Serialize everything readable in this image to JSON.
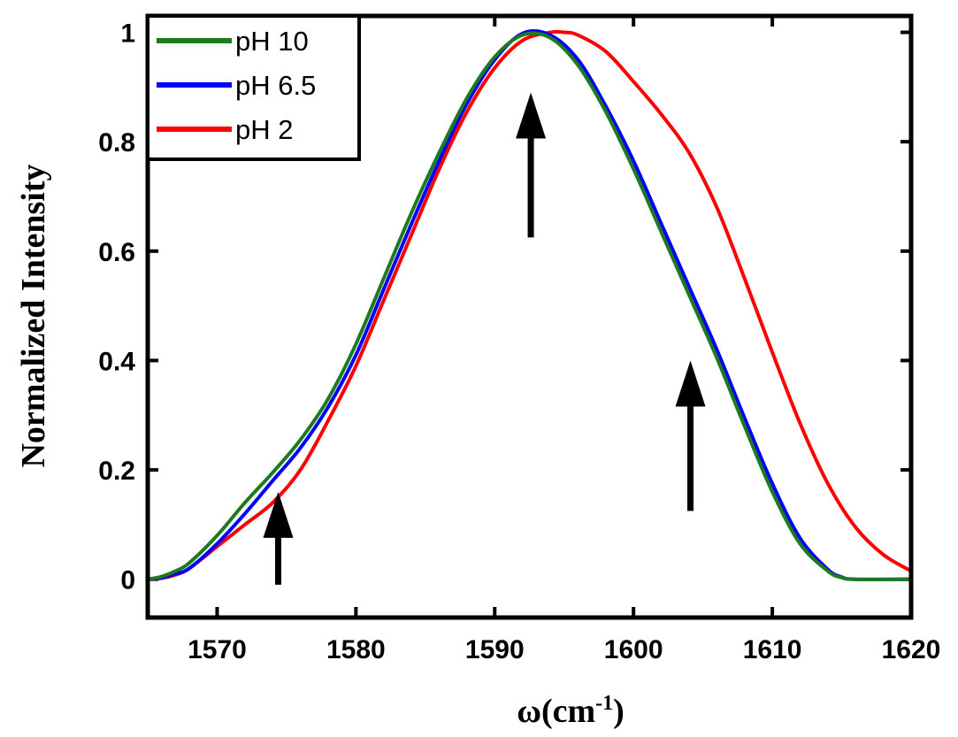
{
  "chart_data": {
    "type": "line",
    "xlabel": "ω(cm",
    "xlabel_superscript": "-1",
    "xlabel_suffix": ")",
    "ylabel": "Normalized Intensity",
    "xlim": [
      1565,
      1620
    ],
    "ylim": [
      -0.07,
      1.03
    ],
    "xticks": [
      1570,
      1580,
      1590,
      1600,
      1610,
      1620
    ],
    "yticks": [
      0,
      0.2,
      0.4,
      0.6,
      0.8,
      1
    ],
    "xtick_labels": [
      "1570",
      "1580",
      "1590",
      "1600",
      "1610",
      "1620"
    ],
    "ytick_labels": [
      "0",
      "0.2",
      "0.4",
      "0.6",
      "0.8",
      "1"
    ],
    "grid": false,
    "legend_position": "top-left",
    "series": [
      {
        "name": "pH 10",
        "color": "#1e7a1e",
        "x": [
          1565,
          1566,
          1567,
          1568,
          1570,
          1572,
          1574,
          1576,
          1578,
          1580,
          1582,
          1584,
          1586,
          1588,
          1590,
          1592,
          1594,
          1596,
          1598,
          1600,
          1602,
          1604,
          1606,
          1608,
          1610,
          1612,
          1614,
          1615,
          1616,
          1620
        ],
        "y": [
          0.0,
          0.005,
          0.015,
          0.03,
          0.08,
          0.14,
          0.195,
          0.255,
          0.33,
          0.43,
          0.55,
          0.67,
          0.78,
          0.88,
          0.955,
          0.995,
          0.99,
          0.94,
          0.855,
          0.75,
          0.635,
          0.52,
          0.405,
          0.28,
          0.16,
          0.065,
          0.015,
          0.003,
          0.0,
          0.0
        ]
      },
      {
        "name": "pH 6.5",
        "color": "#0000ff",
        "x": [
          1565,
          1566,
          1567,
          1568,
          1570,
          1572,
          1574,
          1576,
          1578,
          1580,
          1582,
          1584,
          1586,
          1588,
          1590,
          1592,
          1594,
          1596,
          1598,
          1600,
          1602,
          1604,
          1606,
          1608,
          1610,
          1612,
          1614,
          1615,
          1616,
          1620
        ],
        "y": [
          0.0,
          0.003,
          0.01,
          0.02,
          0.065,
          0.12,
          0.18,
          0.24,
          0.315,
          0.41,
          0.53,
          0.65,
          0.765,
          0.87,
          0.95,
          0.998,
          0.995,
          0.95,
          0.865,
          0.765,
          0.65,
          0.535,
          0.42,
          0.295,
          0.175,
          0.075,
          0.018,
          0.004,
          0.0,
          0.0
        ]
      },
      {
        "name": "pH 2",
        "color": "#ff0000",
        "x": [
          1565,
          1566,
          1567,
          1568,
          1570,
          1572,
          1574,
          1576,
          1578,
          1580,
          1582,
          1584,
          1586,
          1588,
          1590,
          1592,
          1594,
          1595,
          1596,
          1598,
          1600,
          1602,
          1604,
          1606,
          1608,
          1610,
          1612,
          1614,
          1616,
          1618,
          1620
        ],
        "y": [
          0.0,
          0.002,
          0.008,
          0.02,
          0.06,
          0.1,
          0.14,
          0.2,
          0.29,
          0.39,
          0.51,
          0.63,
          0.75,
          0.855,
          0.935,
          0.985,
          1.0,
          1.0,
          0.995,
          0.965,
          0.91,
          0.85,
          0.78,
          0.68,
          0.55,
          0.415,
          0.285,
          0.175,
          0.095,
          0.045,
          0.015
        ]
      }
    ],
    "arrows": [
      {
        "x": 1574.4,
        "y_start": -0.01,
        "y_end": 0.16
      },
      {
        "x": 1592.6,
        "y_start": 0.625,
        "y_end": 0.89
      },
      {
        "x": 1604.1,
        "y_start": 0.125,
        "y_end": 0.4
      }
    ]
  }
}
